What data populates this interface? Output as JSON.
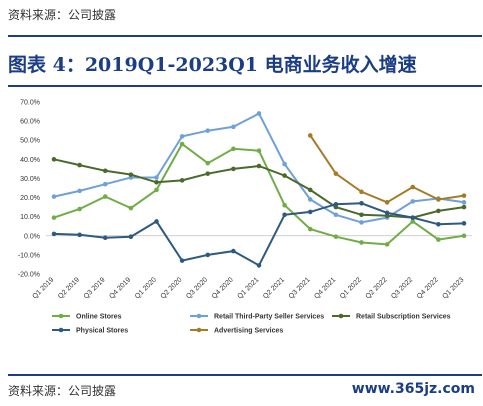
{
  "header": {
    "source_top": "资料来源：公司披露"
  },
  "figure": {
    "title": "图表 4：2019Q1-2023Q1 电商业务收入增速"
  },
  "footer": {
    "source_bottom": "资料来源：公司披露",
    "watermark": "www.365jz.com"
  },
  "chart_data": {
    "type": "line",
    "title": "",
    "xlabel": "",
    "ylabel": "",
    "ylim": [
      -20,
      70
    ],
    "yticks": [
      "70.0%",
      "60.0%",
      "50.0%",
      "40.0%",
      "30.0%",
      "20.0%",
      "10.0%",
      "0.0%",
      "-10.0%",
      "-20.0%"
    ],
    "categories": [
      "Q1 2019",
      "Q2 2019",
      "Q3 2019",
      "Q4 2019",
      "Q1 2020",
      "Q2 2020",
      "Q3 2020",
      "Q4 2020",
      "Q1 2021",
      "Q2 2021",
      "Q3 2021",
      "Q4 2021",
      "Q1 2022",
      "Q2 2022",
      "Q3 2022",
      "Q4 2022",
      "Q1 2023"
    ],
    "grid": false,
    "legend_position": "bottom",
    "series": [
      {
        "name": "Online Stores",
        "color": "#70ad47",
        "values": [
          9.5,
          14.0,
          20.5,
          14.5,
          24.0,
          48.0,
          38.0,
          45.5,
          44.5,
          16.0,
          3.5,
          -0.5,
          -3.5,
          -4.5,
          7.5,
          -2.0,
          0.0
        ]
      },
      {
        "name": "Retail Third-Party Seller Services",
        "color": "#6fa0d8",
        "values": [
          20.5,
          23.5,
          27.0,
          30.5,
          30.5,
          52.0,
          55.0,
          57.0,
          64.0,
          37.5,
          19.0,
          11.0,
          7.0,
          9.5,
          18.0,
          19.5,
          17.5
        ]
      },
      {
        "name": "Retail Subscription Services",
        "color": "#4a6a2c",
        "values": [
          40.0,
          37.0,
          34.0,
          32.0,
          28.0,
          29.0,
          32.5,
          35.0,
          36.5,
          31.5,
          24.0,
          15.0,
          11.0,
          10.5,
          9.5,
          13.0,
          15.0
        ]
      },
      {
        "name": "Physical Stores",
        "color": "#2e5a80",
        "values": [
          1.0,
          0.5,
          -1.0,
          -0.5,
          7.5,
          -13.0,
          -10.0,
          -8.0,
          -15.5,
          11.0,
          12.5,
          16.5,
          17.0,
          12.0,
          9.5,
          6.0,
          6.5
        ]
      },
      {
        "name": "Advertising Services",
        "color": "#a47c27",
        "values": [
          null,
          null,
          null,
          null,
          null,
          null,
          null,
          null,
          null,
          null,
          52.5,
          32.5,
          23.0,
          17.5,
          25.5,
          19.0,
          21.0
        ]
      }
    ]
  }
}
